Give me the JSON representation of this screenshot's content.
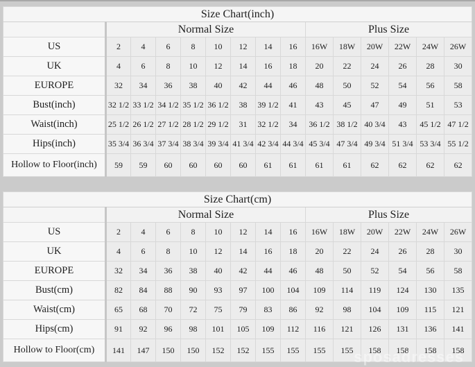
{
  "page": {
    "background": "#cbcbcb",
    "label_column_bg": "#f7f7f7",
    "value_cell_bg": "#ececec",
    "watermark": "sposadresses"
  },
  "tables": [
    {
      "name": "size-chart-inch",
      "title": "Size Chart(inch)",
      "group_headers": {
        "normal": "Normal Size",
        "plus": "Plus Size"
      },
      "normal_col_count": 8,
      "plus_col_count": 6,
      "rows": [
        {
          "label": "US",
          "values": [
            "2",
            "4",
            "6",
            "8",
            "10",
            "12",
            "14",
            "16",
            "16W",
            "18W",
            "20W",
            "22W",
            "24W",
            "26W"
          ]
        },
        {
          "label": "UK",
          "values": [
            "4",
            "6",
            "8",
            "10",
            "12",
            "14",
            "16",
            "18",
            "20",
            "22",
            "24",
            "26",
            "28",
            "30"
          ]
        },
        {
          "label": "EUROPE",
          "values": [
            "32",
            "34",
            "36",
            "38",
            "40",
            "42",
            "44",
            "46",
            "48",
            "50",
            "52",
            "54",
            "56",
            "58"
          ]
        },
        {
          "label": "Bust(inch)",
          "values": [
            "32 1/2",
            "33 1/2",
            "34 1/2",
            "35 1/2",
            "36 1/2",
            "38",
            "39 1/2",
            "41",
            "43",
            "45",
            "47",
            "49",
            "51",
            "53"
          ]
        },
        {
          "label": "Waist(inch)",
          "values": [
            "25 1/2",
            "26 1/2",
            "27 1/2",
            "28 1/2",
            "29 1/2",
            "31",
            "32 1/2",
            "34",
            "36 1/2",
            "38 1/2",
            "40 3/4",
            "43",
            "45 1/2",
            "47 1/2"
          ]
        },
        {
          "label": "Hips(inch)",
          "values": [
            "35 3/4",
            "36 3/4",
            "37 3/4",
            "38 3/4",
            "39 3/4",
            "41 3/4",
            "42 3/4",
            "44 3/4",
            "45 3/4",
            "47 3/4",
            "49 3/4",
            "51 3/4",
            "53 3/4",
            "55 1/2"
          ]
        },
        {
          "label": "Hollow to Floor(inch)",
          "values": [
            "59",
            "59",
            "60",
            "60",
            "60",
            "60",
            "61",
            "61",
            "61",
            "61",
            "62",
            "62",
            "62",
            "62"
          ]
        }
      ]
    },
    {
      "name": "size-chart-cm",
      "title": "Size Chart(cm)",
      "group_headers": {
        "normal": "Normal Size",
        "plus": "Plus Size"
      },
      "normal_col_count": 8,
      "plus_col_count": 6,
      "rows": [
        {
          "label": "US",
          "values": [
            "2",
            "4",
            "6",
            "8",
            "10",
            "12",
            "14",
            "16",
            "16W",
            "18W",
            "20W",
            "22W",
            "24W",
            "26W"
          ]
        },
        {
          "label": "UK",
          "values": [
            "4",
            "6",
            "8",
            "10",
            "12",
            "14",
            "16",
            "18",
            "20",
            "22",
            "24",
            "26",
            "28",
            "30"
          ]
        },
        {
          "label": "EUROPE",
          "values": [
            "32",
            "34",
            "36",
            "38",
            "40",
            "42",
            "44",
            "46",
            "48",
            "50",
            "52",
            "54",
            "56",
            "58"
          ]
        },
        {
          "label": "Bust(cm)",
          "values": [
            "82",
            "84",
            "88",
            "90",
            "93",
            "97",
            "100",
            "104",
            "109",
            "114",
            "119",
            "124",
            "130",
            "135"
          ]
        },
        {
          "label": "Waist(cm)",
          "values": [
            "65",
            "68",
            "70",
            "72",
            "75",
            "79",
            "83",
            "86",
            "92",
            "98",
            "104",
            "109",
            "115",
            "121"
          ]
        },
        {
          "label": "Hips(cm)",
          "values": [
            "91",
            "92",
            "96",
            "98",
            "101",
            "105",
            "109",
            "112",
            "116",
            "121",
            "126",
            "131",
            "136",
            "141"
          ]
        },
        {
          "label": "Hollow to Floor(cm)",
          "values": [
            "141",
            "147",
            "150",
            "150",
            "152",
            "152",
            "155",
            "155",
            "155",
            "155",
            "158",
            "158",
            "158",
            "158"
          ]
        }
      ]
    }
  ]
}
